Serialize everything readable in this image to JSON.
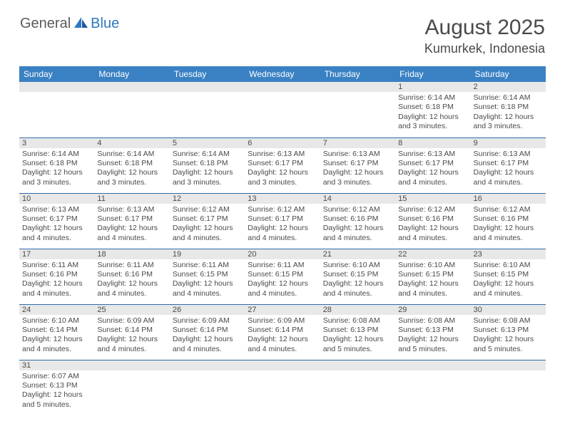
{
  "logo": {
    "text1": "General",
    "text2": "Blue"
  },
  "title": "August 2025",
  "location": "Kumurkek, Indonesia",
  "colors": {
    "header_bg": "#3a81c4",
    "header_text": "#ffffff",
    "daynum_bg": "#e8e8e8",
    "row_border": "#2f6aa8",
    "body_text": "#4a4a4a",
    "logo_blue": "#2f78c1"
  },
  "dayHeaders": [
    "Sunday",
    "Monday",
    "Tuesday",
    "Wednesday",
    "Thursday",
    "Friday",
    "Saturday"
  ],
  "weeks": [
    [
      null,
      null,
      null,
      null,
      null,
      {
        "n": "1",
        "sr": "6:14 AM",
        "ss": "6:18 PM",
        "dl": "12 hours and 3 minutes."
      },
      {
        "n": "2",
        "sr": "6:14 AM",
        "ss": "6:18 PM",
        "dl": "12 hours and 3 minutes."
      }
    ],
    [
      {
        "n": "3",
        "sr": "6:14 AM",
        "ss": "6:18 PM",
        "dl": "12 hours and 3 minutes."
      },
      {
        "n": "4",
        "sr": "6:14 AM",
        "ss": "6:18 PM",
        "dl": "12 hours and 3 minutes."
      },
      {
        "n": "5",
        "sr": "6:14 AM",
        "ss": "6:18 PM",
        "dl": "12 hours and 3 minutes."
      },
      {
        "n": "6",
        "sr": "6:13 AM",
        "ss": "6:17 PM",
        "dl": "12 hours and 3 minutes."
      },
      {
        "n": "7",
        "sr": "6:13 AM",
        "ss": "6:17 PM",
        "dl": "12 hours and 3 minutes."
      },
      {
        "n": "8",
        "sr": "6:13 AM",
        "ss": "6:17 PM",
        "dl": "12 hours and 4 minutes."
      },
      {
        "n": "9",
        "sr": "6:13 AM",
        "ss": "6:17 PM",
        "dl": "12 hours and 4 minutes."
      }
    ],
    [
      {
        "n": "10",
        "sr": "6:13 AM",
        "ss": "6:17 PM",
        "dl": "12 hours and 4 minutes."
      },
      {
        "n": "11",
        "sr": "6:13 AM",
        "ss": "6:17 PM",
        "dl": "12 hours and 4 minutes."
      },
      {
        "n": "12",
        "sr": "6:12 AM",
        "ss": "6:17 PM",
        "dl": "12 hours and 4 minutes."
      },
      {
        "n": "13",
        "sr": "6:12 AM",
        "ss": "6:17 PM",
        "dl": "12 hours and 4 minutes."
      },
      {
        "n": "14",
        "sr": "6:12 AM",
        "ss": "6:16 PM",
        "dl": "12 hours and 4 minutes."
      },
      {
        "n": "15",
        "sr": "6:12 AM",
        "ss": "6:16 PM",
        "dl": "12 hours and 4 minutes."
      },
      {
        "n": "16",
        "sr": "6:12 AM",
        "ss": "6:16 PM",
        "dl": "12 hours and 4 minutes."
      }
    ],
    [
      {
        "n": "17",
        "sr": "6:11 AM",
        "ss": "6:16 PM",
        "dl": "12 hours and 4 minutes."
      },
      {
        "n": "18",
        "sr": "6:11 AM",
        "ss": "6:16 PM",
        "dl": "12 hours and 4 minutes."
      },
      {
        "n": "19",
        "sr": "6:11 AM",
        "ss": "6:15 PM",
        "dl": "12 hours and 4 minutes."
      },
      {
        "n": "20",
        "sr": "6:11 AM",
        "ss": "6:15 PM",
        "dl": "12 hours and 4 minutes."
      },
      {
        "n": "21",
        "sr": "6:10 AM",
        "ss": "6:15 PM",
        "dl": "12 hours and 4 minutes."
      },
      {
        "n": "22",
        "sr": "6:10 AM",
        "ss": "6:15 PM",
        "dl": "12 hours and 4 minutes."
      },
      {
        "n": "23",
        "sr": "6:10 AM",
        "ss": "6:15 PM",
        "dl": "12 hours and 4 minutes."
      }
    ],
    [
      {
        "n": "24",
        "sr": "6:10 AM",
        "ss": "6:14 PM",
        "dl": "12 hours and 4 minutes."
      },
      {
        "n": "25",
        "sr": "6:09 AM",
        "ss": "6:14 PM",
        "dl": "12 hours and 4 minutes."
      },
      {
        "n": "26",
        "sr": "6:09 AM",
        "ss": "6:14 PM",
        "dl": "12 hours and 4 minutes."
      },
      {
        "n": "27",
        "sr": "6:09 AM",
        "ss": "6:14 PM",
        "dl": "12 hours and 4 minutes."
      },
      {
        "n": "28",
        "sr": "6:08 AM",
        "ss": "6:13 PM",
        "dl": "12 hours and 5 minutes."
      },
      {
        "n": "29",
        "sr": "6:08 AM",
        "ss": "6:13 PM",
        "dl": "12 hours and 5 minutes."
      },
      {
        "n": "30",
        "sr": "6:08 AM",
        "ss": "6:13 PM",
        "dl": "12 hours and 5 minutes."
      }
    ],
    [
      {
        "n": "31",
        "sr": "6:07 AM",
        "ss": "6:13 PM",
        "dl": "12 hours and 5 minutes."
      },
      null,
      null,
      null,
      null,
      null,
      null
    ]
  ],
  "labels": {
    "sunrise": "Sunrise:",
    "sunset": "Sunset:",
    "daylight": "Daylight:"
  }
}
